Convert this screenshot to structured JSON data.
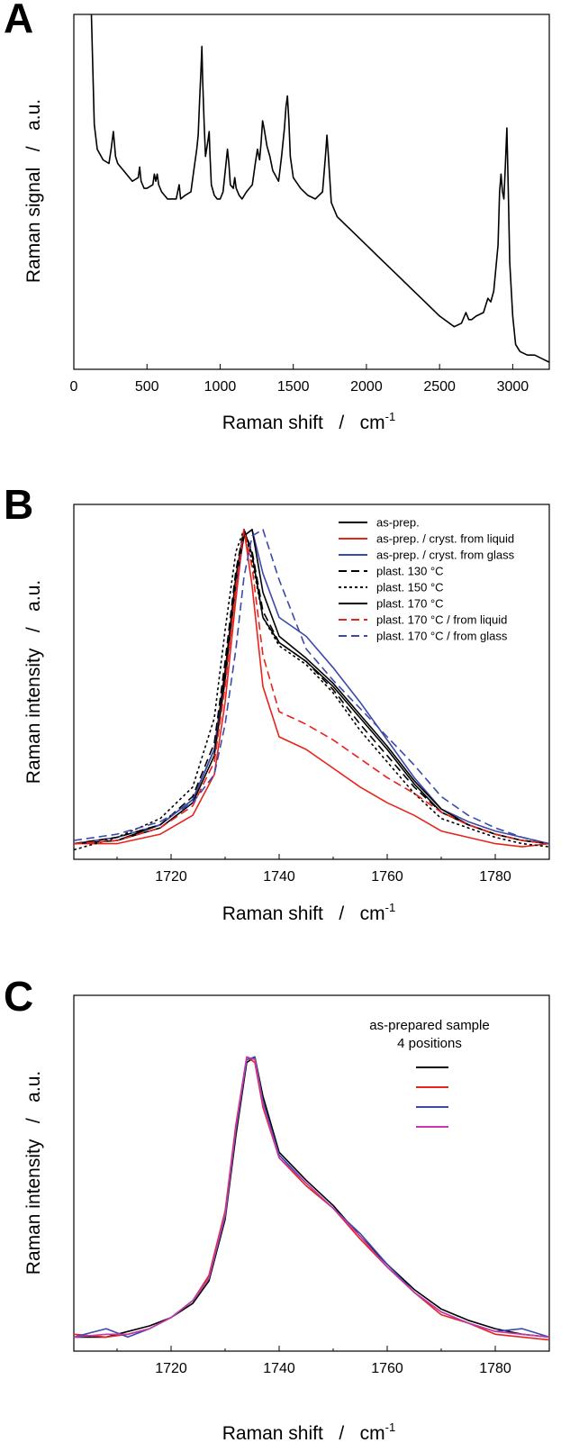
{
  "chart_data": [
    {
      "panel": "A",
      "type": "line",
      "xlabel": "Raman shift",
      "xunit": "cm",
      "xunit_sup": "-1",
      "ylabel": "Raman signal",
      "yunit": "a.u.",
      "xlim": [
        0,
        3250
      ],
      "ylim": [
        0,
        1
      ],
      "xticks": [
        0,
        500,
        1000,
        1500,
        2000,
        2500,
        3000
      ],
      "y_tick_labels": false,
      "series": [
        {
          "color": "#000000",
          "dash": "solid",
          "x": [
            120,
            140,
            160,
            200,
            240,
            255,
            270,
            285,
            300,
            340,
            400,
            440,
            450,
            460,
            480,
            500,
            540,
            550,
            560,
            570,
            580,
            600,
            640,
            700,
            710,
            720,
            730,
            760,
            800,
            820,
            840,
            850,
            860,
            870,
            875,
            880,
            890,
            900,
            915,
            925,
            930,
            940,
            960,
            980,
            1000,
            1020,
            1040,
            1050,
            1060,
            1070,
            1090,
            1100,
            1110,
            1130,
            1150,
            1180,
            1220,
            1240,
            1255,
            1270,
            1280,
            1290,
            1300,
            1320,
            1340,
            1360,
            1400,
            1420,
            1440,
            1450,
            1460,
            1470,
            1480,
            1500,
            1550,
            1600,
            1650,
            1700,
            1710,
            1720,
            1730,
            1740,
            1760,
            1800,
            1900,
            2000,
            2100,
            2200,
            2300,
            2400,
            2500,
            2600,
            2650,
            2680,
            2700,
            2720,
            2750,
            2800,
            2830,
            2850,
            2870,
            2900,
            2910,
            2920,
            2930,
            2940,
            2950,
            2960,
            2970,
            2980,
            3000,
            3020,
            3050,
            3100,
            3150,
            3200,
            3250
          ],
          "y": [
            1.05,
            0.69,
            0.62,
            0.59,
            0.58,
            0.62,
            0.67,
            0.6,
            0.58,
            0.56,
            0.53,
            0.54,
            0.57,
            0.53,
            0.51,
            0.51,
            0.52,
            0.55,
            0.53,
            0.55,
            0.52,
            0.5,
            0.48,
            0.48,
            0.5,
            0.52,
            0.48,
            0.49,
            0.5,
            0.56,
            0.62,
            0.66,
            0.76,
            0.85,
            0.91,
            0.82,
            0.7,
            0.6,
            0.64,
            0.67,
            0.61,
            0.52,
            0.49,
            0.48,
            0.48,
            0.5,
            0.58,
            0.62,
            0.58,
            0.52,
            0.51,
            0.54,
            0.51,
            0.49,
            0.48,
            0.5,
            0.52,
            0.58,
            0.62,
            0.59,
            0.64,
            0.7,
            0.68,
            0.63,
            0.6,
            0.56,
            0.53,
            0.6,
            0.68,
            0.74,
            0.77,
            0.7,
            0.6,
            0.54,
            0.51,
            0.49,
            0.48,
            0.5,
            0.55,
            0.6,
            0.66,
            0.6,
            0.47,
            0.43,
            0.39,
            0.35,
            0.31,
            0.27,
            0.23,
            0.19,
            0.15,
            0.12,
            0.13,
            0.16,
            0.14,
            0.14,
            0.15,
            0.16,
            0.2,
            0.19,
            0.22,
            0.35,
            0.5,
            0.55,
            0.5,
            0.48,
            0.58,
            0.68,
            0.5,
            0.3,
            0.15,
            0.07,
            0.05,
            0.04,
            0.04,
            0.03,
            0.02
          ]
        }
      ]
    },
    {
      "panel": "B",
      "type": "line",
      "xlabel": "Raman shift",
      "xunit": "cm",
      "xunit_sup": "-1",
      "ylabel": "Raman intensity",
      "yunit": "a.u.",
      "xlim": [
        1702,
        1790
      ],
      "ylim": [
        -0.05,
        1.08
      ],
      "xticks": [
        1720,
        1740,
        1760,
        1780
      ],
      "y_tick_labels": false,
      "series": [
        {
          "name": "as-prep.",
          "color": "#000000",
          "dash": "solid",
          "x": [
            1702,
            1710,
            1718,
            1724,
            1728,
            1730,
            1732,
            1733.5,
            1735,
            1737,
            1740,
            1745,
            1750,
            1755,
            1760,
            1765,
            1770,
            1775,
            1780,
            1785,
            1790
          ],
          "y": [
            0,
            0.01,
            0.06,
            0.14,
            0.3,
            0.55,
            0.85,
            1.0,
            0.92,
            0.72,
            0.64,
            0.58,
            0.5,
            0.4,
            0.3,
            0.19,
            0.1,
            0.06,
            0.03,
            0.01,
            0
          ]
        },
        {
          "name": "as-prep. / cryst. from liquid",
          "color": "#e8231c",
          "dash": "solid",
          "x": [
            1702,
            1710,
            1718,
            1724,
            1728,
            1730,
            1732,
            1733.5,
            1735,
            1737,
            1740,
            1745,
            1750,
            1755,
            1760,
            1765,
            1770,
            1775,
            1780,
            1785,
            1790
          ],
          "y": [
            0,
            0.0,
            0.03,
            0.09,
            0.22,
            0.45,
            0.78,
            1.0,
            0.82,
            0.5,
            0.34,
            0.3,
            0.24,
            0.18,
            0.13,
            0.09,
            0.04,
            0.02,
            0.0,
            -0.01,
            0
          ]
        },
        {
          "name": "as-prep. / cryst. from glass",
          "color": "#3b4aa8",
          "dash": "solid",
          "x": [
            1702,
            1710,
            1718,
            1724,
            1728,
            1730,
            1732,
            1733.5,
            1735,
            1737,
            1740,
            1745,
            1750,
            1755,
            1760,
            1765,
            1770,
            1775,
            1780,
            1785,
            1790
          ],
          "y": [
            0,
            0.02,
            0.06,
            0.14,
            0.3,
            0.52,
            0.82,
            0.98,
            1.0,
            0.86,
            0.72,
            0.66,
            0.56,
            0.45,
            0.33,
            0.21,
            0.11,
            0.07,
            0.04,
            0.02,
            0
          ]
        },
        {
          "name": "plast. 130 °C",
          "color": "#000000",
          "dash": "9,5",
          "x": [
            1702,
            1710,
            1718,
            1724,
            1728,
            1730,
            1732,
            1733.5,
            1735,
            1737,
            1740,
            1745,
            1750,
            1755,
            1760,
            1765,
            1770,
            1775,
            1780,
            1785,
            1790
          ],
          "y": [
            0,
            0.02,
            0.06,
            0.15,
            0.32,
            0.58,
            0.87,
            1.0,
            0.93,
            0.74,
            0.64,
            0.58,
            0.49,
            0.38,
            0.28,
            0.18,
            0.1,
            0.06,
            0.03,
            0.01,
            0
          ]
        },
        {
          "name": "plast. 150 °C",
          "color": "#000000",
          "dash": "3,3",
          "x": [
            1702,
            1710,
            1718,
            1724,
            1728,
            1730,
            1732,
            1733.5,
            1735,
            1737,
            1740,
            1745,
            1750,
            1755,
            1760,
            1765,
            1770,
            1775,
            1780,
            1785,
            1790
          ],
          "y": [
            -0.02,
            0.02,
            0.08,
            0.18,
            0.4,
            0.68,
            0.93,
            1.0,
            0.9,
            0.72,
            0.63,
            0.57,
            0.48,
            0.36,
            0.26,
            0.16,
            0.08,
            0.05,
            0.02,
            0.0,
            -0.01
          ]
        },
        {
          "name": "plast. 170 °C",
          "color": "#000000",
          "dash": "solid",
          "x": [
            1702,
            1710,
            1718,
            1724,
            1728,
            1730,
            1732,
            1733.5,
            1735,
            1737,
            1740,
            1745,
            1750,
            1755,
            1760,
            1765,
            1770,
            1775,
            1780,
            1785,
            1790
          ],
          "y": [
            0,
            0.01,
            0.05,
            0.13,
            0.28,
            0.52,
            0.84,
            0.98,
            1.0,
            0.8,
            0.66,
            0.59,
            0.51,
            0.41,
            0.31,
            0.2,
            0.11,
            0.06,
            0.03,
            0.01,
            0
          ]
        },
        {
          "name": "plast. 170 °C / from liquid",
          "color": "#e8231c",
          "dash": "9,5",
          "x": [
            1702,
            1710,
            1718,
            1724,
            1728,
            1730,
            1732,
            1733.5,
            1735,
            1737,
            1740,
            1745,
            1750,
            1755,
            1760,
            1765,
            1770,
            1775,
            1780,
            1785,
            1790
          ],
          "y": [
            0,
            0.01,
            0.05,
            0.12,
            0.26,
            0.5,
            0.82,
            1.0,
            0.88,
            0.6,
            0.42,
            0.38,
            0.33,
            0.27,
            0.21,
            0.16,
            0.1,
            0.06,
            0.03,
            0.01,
            0
          ]
        },
        {
          "name": "plast. 170 °C / from glass",
          "color": "#3b4aa8",
          "dash": "9,5",
          "x": [
            1702,
            1710,
            1718,
            1724,
            1728,
            1730,
            1732,
            1733.5,
            1735,
            1737,
            1740,
            1745,
            1750,
            1755,
            1760,
            1765,
            1770,
            1775,
            1780,
            1785,
            1790
          ],
          "y": [
            0.01,
            0.03,
            0.07,
            0.13,
            0.22,
            0.38,
            0.62,
            0.85,
            0.98,
            1.0,
            0.84,
            0.62,
            0.52,
            0.43,
            0.34,
            0.25,
            0.15,
            0.09,
            0.05,
            0.02,
            0
          ]
        }
      ]
    },
    {
      "panel": "C",
      "type": "line",
      "xlabel": "Raman shift",
      "xunit": "cm",
      "xunit_sup": "-1",
      "ylabel": "Raman intensity",
      "yunit": "a.u.",
      "xlim": [
        1702,
        1790
      ],
      "ylim": [
        -0.05,
        1.22
      ],
      "xticks": [
        1720,
        1740,
        1760,
        1780
      ],
      "y_tick_labels": false,
      "legend_title": [
        "as-prepared sample",
        "4 positions"
      ],
      "series": [
        {
          "color": "#000000",
          "dash": "solid",
          "x": [
            1702,
            1708,
            1712,
            1716,
            1720,
            1724,
            1727,
            1730,
            1732,
            1734,
            1735.5,
            1737,
            1740,
            1745,
            1750,
            1755,
            1760,
            1765,
            1770,
            1775,
            1780,
            1785,
            1790
          ],
          "y": [
            0,
            0,
            0.02,
            0.04,
            0.07,
            0.12,
            0.2,
            0.42,
            0.72,
            0.98,
            1.0,
            0.86,
            0.66,
            0.56,
            0.47,
            0.36,
            0.26,
            0.17,
            0.1,
            0.06,
            0.03,
            0.01,
            0
          ]
        },
        {
          "color": "#e8231c",
          "dash": "solid",
          "x": [
            1702,
            1708,
            1712,
            1716,
            1720,
            1724,
            1727,
            1730,
            1732,
            1734,
            1735.5,
            1737,
            1740,
            1745,
            1750,
            1755,
            1760,
            1765,
            1770,
            1775,
            1780,
            1785,
            1790
          ],
          "y": [
            0.01,
            0,
            0.01,
            0.03,
            0.07,
            0.13,
            0.22,
            0.45,
            0.76,
            1.0,
            0.98,
            0.82,
            0.64,
            0.54,
            0.46,
            0.35,
            0.25,
            0.16,
            0.08,
            0.05,
            0.01,
            0,
            -0.01
          ]
        },
        {
          "color": "#3b4aa8",
          "dash": "solid",
          "x": [
            1702,
            1708,
            1712,
            1716,
            1720,
            1724,
            1727,
            1730,
            1732,
            1734,
            1735.5,
            1737,
            1740,
            1745,
            1750,
            1755,
            1760,
            1765,
            1770,
            1775,
            1780,
            1785,
            1790
          ],
          "y": [
            0,
            0.03,
            0,
            0.03,
            0.07,
            0.13,
            0.21,
            0.43,
            0.74,
            0.99,
            1.0,
            0.84,
            0.65,
            0.55,
            0.46,
            0.37,
            0.26,
            0.16,
            0.09,
            0.05,
            0.02,
            0.03,
            0
          ]
        },
        {
          "color": "#c23aab",
          "dash": "solid",
          "x": [
            1702,
            1708,
            1712,
            1716,
            1720,
            1724,
            1727,
            1730,
            1732,
            1734,
            1735.5,
            1737,
            1740,
            1745,
            1750,
            1755,
            1760,
            1765,
            1770,
            1775,
            1780,
            1785,
            1790
          ],
          "y": [
            0,
            0.01,
            0.01,
            0.03,
            0.07,
            0.13,
            0.21,
            0.44,
            0.75,
            1.0,
            0.99,
            0.83,
            0.64,
            0.55,
            0.46,
            0.36,
            0.25,
            0.16,
            0.09,
            0.05,
            0.02,
            0.01,
            0
          ]
        }
      ]
    }
  ]
}
